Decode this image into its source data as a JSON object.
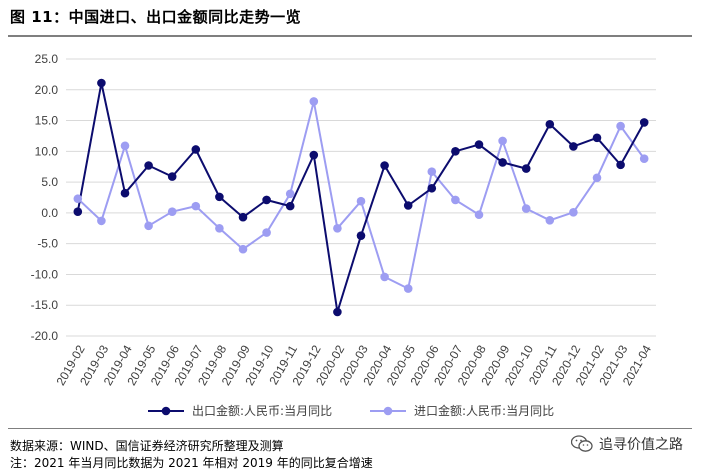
{
  "title": "图 11：中国进口、出口金额同比走势一览",
  "source": "数据来源：WIND、国信证券经济研究所整理及测算",
  "note": "注：2021 年当月同比数据为 2021 年相对 2019 年的同比复合增速",
  "watermark": "追寻价值之路",
  "colors": {
    "export": "#0c0c6e",
    "import": "#9d9df2"
  },
  "chart_data": {
    "type": "line",
    "ylim": [
      -20,
      25
    ],
    "ytick_step": 5,
    "x": [
      "2019-02",
      "2019-03",
      "2019-04",
      "2019-05",
      "2019-06",
      "2019-07",
      "2019-08",
      "2019-09",
      "2019-10",
      "2019-11",
      "2019-12",
      "2020-02",
      "2020-03",
      "2020-04",
      "2020-05",
      "2020-06",
      "2020-07",
      "2020-08",
      "2020-09",
      "2020-10",
      "2020-11",
      "2020-12",
      "2021-02",
      "2021-03",
      "2021-04"
    ],
    "series": [
      {
        "name": "出口金额:人民币:当月同比",
        "values": [
          0.2,
          21.1,
          3.2,
          7.7,
          5.9,
          10.3,
          2.6,
          -0.7,
          2.1,
          1.1,
          9.4,
          -16.1,
          -3.7,
          7.7,
          1.2,
          4.0,
          10.0,
          11.1,
          8.2,
          7.2,
          14.4,
          10.8,
          12.2,
          7.8,
          14.7
        ]
      },
      {
        "name": "进口金额:人民币:当月同比",
        "values": [
          2.3,
          -1.3,
          10.9,
          -2.1,
          0.2,
          1.1,
          -2.5,
          -5.9,
          -3.2,
          3.1,
          18.1,
          -2.5,
          1.9,
          -10.4,
          -12.3,
          6.7,
          2.1,
          -0.3,
          11.7,
          0.7,
          -1.2,
          0.1,
          5.7,
          14.1,
          8.8
        ]
      }
    ],
    "grid": true,
    "legend": "bottom"
  }
}
